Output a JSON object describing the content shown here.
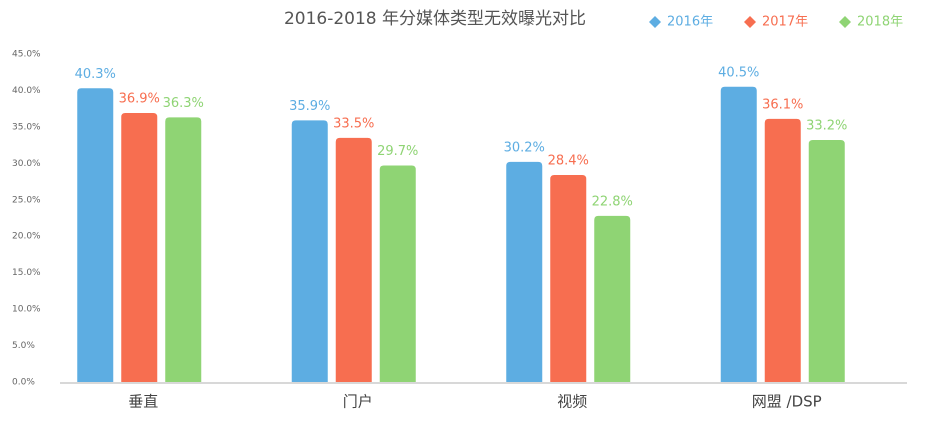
{
  "chart_data": {
    "type": "bar",
    "title": "2016-2018 年分媒体类型无效曝光对比",
    "categories": [
      "垂直",
      "门户",
      "视频",
      "网盟 /DSP"
    ],
    "series": [
      {
        "name": "2016年",
        "color": "#5dade2",
        "values": [
          40.3,
          35.9,
          30.2,
          40.5
        ],
        "value_labels": [
          "40.3%",
          "35.9%",
          "30.2%",
          "40.5%"
        ]
      },
      {
        "name": "2017年",
        "color": "#f76e50",
        "values": [
          36.9,
          33.5,
          28.4,
          36.1
        ],
        "value_labels": [
          "36.9%",
          "33.5%",
          "28.4%",
          "36.1%"
        ]
      },
      {
        "name": "2018年",
        "color": "#8fd474",
        "values": [
          36.3,
          29.7,
          22.8,
          33.2
        ],
        "value_labels": [
          "36.3%",
          "29.7%",
          "22.8%",
          "33.2%"
        ]
      }
    ],
    "ylim": [
      0,
      45
    ],
    "yticks": [
      {
        "value": 0,
        "label": "0.0%"
      },
      {
        "value": 5,
        "label": "5.0%"
      },
      {
        "value": 10,
        "label": "10.0%"
      },
      {
        "value": 15,
        "label": "15.0%"
      },
      {
        "value": 20,
        "label": "20.0%"
      },
      {
        "value": 25,
        "label": "25.0%"
      },
      {
        "value": 30,
        "label": "30.0%"
      },
      {
        "value": 35,
        "label": "35.0%"
      },
      {
        "value": 40,
        "label": "40.0%"
      },
      {
        "value": 45,
        "label": "45.0%"
      }
    ],
    "grid": false,
    "legend": "top-right"
  }
}
